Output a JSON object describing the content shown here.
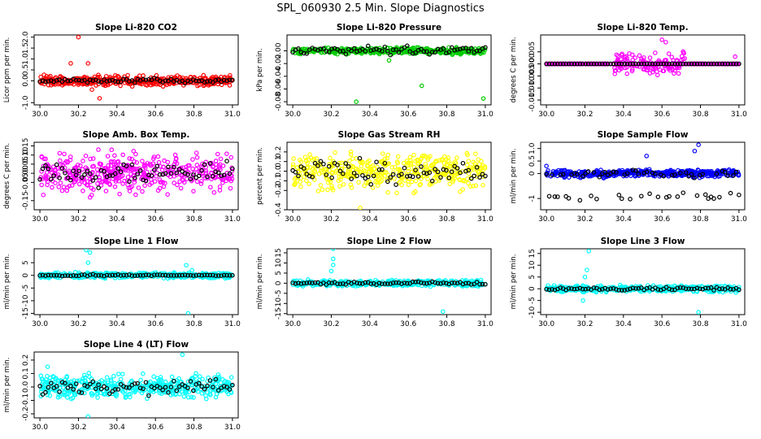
{
  "figure_title": "SPL_060930  2.5 Min. Slope Diagnostics",
  "colors": {
    "black": "#000000",
    "frame": "#000000"
  },
  "chart_data": [
    {
      "type": "scatter",
      "title": "Slope Li-820 CO2",
      "ylabel": "Licor ppm per min.",
      "color": "#ff0000",
      "xlim": [
        29.97,
        31.03
      ],
      "ylim": [
        -1.1,
        2.1
      ],
      "xticks": [
        "30.0",
        "30.2",
        "30.4",
        "30.6",
        "30.8",
        "31.0"
      ],
      "yticks": [
        "-1.0",
        "0.0",
        "0.5",
        "1.0",
        "1.5",
        "2.0"
      ],
      "ytick_values": [
        -1.0,
        0.0,
        0.5,
        1.0,
        1.5,
        2.0
      ],
      "band": 0.32,
      "black_band": 0.15,
      "outliers": [
        [
          30.2,
          2.0
        ],
        [
          30.16,
          0.8
        ],
        [
          30.31,
          -0.8
        ],
        [
          30.25,
          0.8
        ],
        [
          30.27,
          -0.4
        ]
      ]
    },
    {
      "type": "scatter",
      "title": "Slope Li-820 Pressure",
      "ylabel": "kPa per min.",
      "color": "#00cc00",
      "xlim": [
        29.97,
        31.03
      ],
      "ylim": [
        -0.085,
        0.025
      ],
      "xticks": [
        "30.0",
        "30.2",
        "30.4",
        "30.6",
        "30.8",
        "31.0"
      ],
      "yticks": [
        "-0.08",
        "-0.06",
        "-0.04",
        "-0.02",
        "0.00"
      ],
      "ytick_values": [
        -0.08,
        -0.06,
        -0.04,
        -0.02,
        0.0
      ],
      "band": 0.007,
      "black_band": 0.01,
      "outliers": [
        [
          30.33,
          -0.08
        ],
        [
          30.67,
          -0.055
        ],
        [
          30.99,
          -0.075
        ],
        [
          30.5,
          -0.015
        ]
      ]
    },
    {
      "type": "scatter",
      "title": "Slope Li-820 Temp.",
      "ylabel": "degrees C per min.",
      "color": "#ff00ff",
      "xlim": [
        29.97,
        31.03
      ],
      "ylim": [
        -0.017,
        0.012
      ],
      "xticks": [
        "30.0",
        "30.2",
        "30.4",
        "30.6",
        "30.8",
        "31.0"
      ],
      "yticks": [
        "-0.015",
        "-0.010",
        "-0.005",
        "0.000",
        "0.005"
      ],
      "ytick_values": [
        -0.015,
        -0.01,
        -0.005,
        0.0,
        0.005
      ],
      "band": 0.0,
      "black_band": 0.0,
      "burst": [
        30.35,
        30.72,
        0.006
      ],
      "outliers": [
        [
          30.6,
          0.01
        ],
        [
          30.62,
          0.009
        ],
        [
          30.98,
          0.003
        ]
      ]
    },
    {
      "type": "scatter",
      "title": "Slope Amb. Box Temp.",
      "ylabel": "degrees C per min.",
      "color": "#ff00ff",
      "xlim": [
        29.97,
        31.03
      ],
      "ylim": [
        -0.2,
        0.17
      ],
      "xticks": [
        "30.0",
        "30.2",
        "30.4",
        "30.6",
        "30.8",
        "31.0"
      ],
      "yticks": [
        "-0.15",
        "-0.05",
        "0.00",
        "0.05",
        "0.10",
        "0.15"
      ],
      "ytick_values": [
        -0.15,
        -0.05,
        0.0,
        0.05,
        0.1,
        0.15
      ],
      "band": 0.14,
      "black_band": 0.1,
      "outliers": []
    },
    {
      "type": "scatter",
      "title": "Slope Gas Stream RH",
      "ylabel": "percent per min.",
      "color": "#ffff00",
      "xlim": [
        29.97,
        31.03
      ],
      "ylim": [
        -0.4,
        0.3
      ],
      "xticks": [
        "30.0",
        "30.2",
        "30.4",
        "30.6",
        "30.8",
        "31.0"
      ],
      "yticks": [
        "-0.4",
        "-0.2",
        "-0.1",
        "0.0",
        "0.1",
        "0.2"
      ],
      "ytick_values": [
        -0.4,
        -0.2,
        -0.1,
        0.0,
        0.1,
        0.2
      ],
      "band": 0.25,
      "black_band": 0.18,
      "outliers": [
        [
          30.35,
          -0.38
        ]
      ]
    },
    {
      "type": "scatter",
      "title": "Slope Sample Flow",
      "ylabel": "ml/min per min.",
      "color": "#0000ff",
      "xlim": [
        29.97,
        31.03
      ],
      "ylim": [
        -1.45,
        1.25
      ],
      "xticks": [
        "30.0",
        "30.2",
        "30.4",
        "30.6",
        "30.8",
        "31.0"
      ],
      "yticks": [
        "-1",
        "0",
        "0.5",
        "1.0"
      ],
      "ytick_values": [
        -1.0,
        0.0,
        0.5,
        1.0
      ],
      "band": 0.2,
      "black_band": 0.2,
      "black_low": -0.9,
      "outliers": [
        [
          30.79,
          1.15
        ],
        [
          30.77,
          0.9
        ],
        [
          30.0,
          0.3
        ],
        [
          30.52,
          0.7
        ]
      ]
    },
    {
      "type": "scatter",
      "title": "Slope Line 1 Flow",
      "ylabel": "ml/min per min.",
      "color": "#00ffff",
      "xlim": [
        29.97,
        31.03
      ],
      "ylim": [
        -15.5,
        10.5
      ],
      "xticks": [
        "30.0",
        "30.2",
        "30.4",
        "30.6",
        "30.8",
        "31.0"
      ],
      "yticks": [
        "-15",
        "-10",
        "-5",
        "0",
        "5"
      ],
      "ytick_values": [
        -15,
        -10,
        -5,
        0,
        5
      ],
      "band": 1.5,
      "black_band": 0.5,
      "outliers": [
        [
          30.24,
          10
        ],
        [
          30.26,
          9
        ],
        [
          30.25,
          5
        ],
        [
          30.77,
          -15
        ],
        [
          30.76,
          4
        ],
        [
          30.79,
          2
        ]
      ]
    },
    {
      "type": "scatter",
      "title": "Slope Line 2 Flow",
      "ylabel": "ml/min per min.",
      "color": "#00ffff",
      "xlim": [
        29.97,
        31.03
      ],
      "ylim": [
        -15.5,
        17
      ],
      "xticks": [
        "30.0",
        "30.2",
        "30.4",
        "30.6",
        "30.8",
        "31.0"
      ],
      "yticks": [
        "-15",
        "-10",
        "-5",
        "0",
        "5",
        "10",
        "15"
      ],
      "ytick_values": [
        -15,
        -10,
        -5,
        0,
        5,
        10,
        15
      ],
      "band": 2.0,
      "black_band": 1.0,
      "outliers": [
        [
          30.21,
          17
        ],
        [
          30.21,
          12
        ],
        [
          30.21,
          9
        ],
        [
          30.2,
          6
        ],
        [
          30.78,
          -14
        ]
      ]
    },
    {
      "type": "scatter",
      "title": "Slope Line 3 Flow",
      "ylabel": "ml/min per min.",
      "color": "#00ffff",
      "xlim": [
        29.97,
        31.03
      ],
      "ylim": [
        -11,
        17
      ],
      "xticks": [
        "30.0",
        "30.2",
        "30.4",
        "30.6",
        "30.8",
        "31.0"
      ],
      "yticks": [
        "-10",
        "-5",
        "0",
        "5",
        "10",
        "15"
      ],
      "ytick_values": [
        -10,
        -5,
        0,
        5,
        10,
        15
      ],
      "band": 1.8,
      "black_band": 1.0,
      "outliers": [
        [
          30.22,
          16
        ],
        [
          30.21,
          8
        ],
        [
          30.2,
          5
        ],
        [
          30.19,
          -5
        ],
        [
          30.79,
          -10
        ],
        [
          30.8,
          -12
        ]
      ]
    },
    {
      "type": "scatter",
      "title": "Slope Line 4 (LT) Flow",
      "ylabel": "ml/min per min.",
      "color": "#00ffff",
      "xlim": [
        29.97,
        31.03
      ],
      "ylim": [
        -0.23,
        0.26
      ],
      "xticks": [
        "30.0",
        "30.2",
        "30.4",
        "30.6",
        "30.8",
        "31.0"
      ],
      "yticks": [
        "-0.2",
        "-0.1",
        "0.0",
        "0.1",
        "0.2"
      ],
      "ytick_values": [
        -0.2,
        -0.1,
        0.0,
        0.1,
        0.2
      ],
      "band": 0.12,
      "black_band": 0.08,
      "outliers": [
        [
          30.74,
          0.24
        ],
        [
          30.25,
          -0.22
        ],
        [
          30.04,
          0.15
        ]
      ]
    }
  ]
}
